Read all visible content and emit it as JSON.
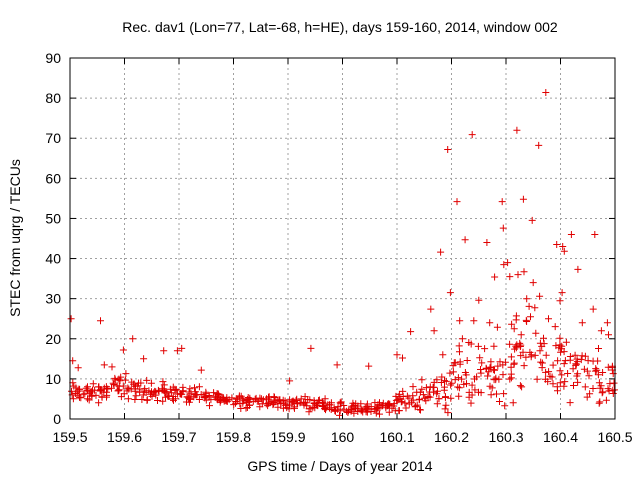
{
  "chart_data": {
    "type": "scatter",
    "title": "Rec. dav1 (Lon=77, Lat=-68, h=HE), days 159-160, 2014, window 002",
    "xlabel": "GPS time / Days of year 2014",
    "ylabel": "STEC from uqrg / TECUs",
    "xlim": [
      159.5,
      160.5
    ],
    "ylim": [
      0,
      90
    ],
    "xticks": [
      159.5,
      159.6,
      159.7,
      159.8,
      159.9,
      160.0,
      160.1,
      160.2,
      160.3,
      160.4,
      160.5
    ],
    "xtick_labels": [
      "159.5",
      "159.6",
      "159.7",
      "159.8",
      "159.9",
      "160",
      "160.1",
      "160.2",
      "160.3",
      "160.4",
      "160.5"
    ],
    "yticks": [
      0,
      10,
      20,
      30,
      40,
      50,
      60,
      70,
      80,
      90
    ],
    "ytick_labels": [
      "0",
      "10",
      "20",
      "30",
      "40",
      "50",
      "60",
      "70",
      "80",
      "90"
    ],
    "grid": true,
    "marker": "+",
    "color": "#e00000",
    "series": [
      {
        "name": "STEC",
        "points": [
          [
            159.502,
            25.0
          ],
          [
            159.505,
            14.5
          ],
          [
            159.515,
            12.8
          ],
          [
            159.556,
            24.5
          ],
          [
            159.563,
            13.5
          ],
          [
            159.577,
            13.0
          ],
          [
            159.598,
            17.2
          ],
          [
            159.615,
            20.0
          ],
          [
            159.635,
            15.0
          ],
          [
            159.672,
            17.0
          ],
          [
            159.697,
            17.0
          ],
          [
            159.705,
            17.6
          ],
          [
            159.741,
            12.2
          ],
          [
            159.903,
            9.5
          ],
          [
            159.942,
            17.6
          ],
          [
            159.99,
            13.5
          ],
          [
            160.048,
            13.2
          ],
          [
            160.1,
            16.0
          ],
          [
            160.11,
            15.2
          ],
          [
            160.125,
            21.8
          ],
          [
            160.162,
            27.4
          ],
          [
            160.168,
            22.0
          ],
          [
            160.18,
            41.6
          ],
          [
            160.184,
            16.0
          ],
          [
            160.193,
            67.2
          ],
          [
            160.198,
            31.5
          ],
          [
            160.21,
            54.2
          ],
          [
            160.215,
            24.5
          ],
          [
            160.22,
            20.0
          ],
          [
            160.225,
            44.7
          ],
          [
            160.238,
            70.9
          ],
          [
            160.241,
            24.5
          ],
          [
            160.25,
            29.6
          ],
          [
            160.265,
            44.0
          ],
          [
            160.27,
            24.0
          ],
          [
            160.279,
            35.4
          ],
          [
            160.285,
            13.2
          ],
          [
            160.293,
            54.2
          ],
          [
            160.295,
            47.6
          ],
          [
            160.296,
            38.5
          ],
          [
            160.303,
            39.0
          ],
          [
            160.307,
            35.5
          ],
          [
            160.315,
            22.5
          ],
          [
            160.32,
            72.0
          ],
          [
            160.322,
            36.0
          ],
          [
            160.332,
            54.8
          ],
          [
            160.333,
            36.7
          ],
          [
            160.338,
            30.0
          ],
          [
            160.345,
            25.5
          ],
          [
            160.348,
            49.5
          ],
          [
            160.35,
            34.0
          ],
          [
            160.36,
            68.2
          ],
          [
            160.373,
            81.4
          ],
          [
            160.378,
            25.0
          ],
          [
            160.393,
            43.5
          ],
          [
            160.399,
            29.5
          ],
          [
            160.403,
            31.5
          ],
          [
            160.404,
            43.0
          ],
          [
            160.407,
            41.8
          ],
          [
            160.42,
            46.0
          ],
          [
            160.432,
            37.3
          ],
          [
            160.44,
            24.0
          ],
          [
            160.46,
            27.4
          ],
          [
            160.463,
            46.0
          ],
          [
            160.475,
            22.0
          ],
          [
            160.486,
            24.0
          ],
          [
            160.488,
            21.0
          ]
        ]
      }
    ],
    "band_points": [
      [
        159.5,
        6.8,
        1.7
      ],
      [
        159.525,
        6.3,
        1.6
      ],
      [
        159.55,
        6.4,
        1.5
      ],
      [
        159.575,
        7.0,
        1.7
      ],
      [
        159.6,
        8.6,
        2.4
      ],
      [
        159.625,
        7.4,
        1.8
      ],
      [
        159.65,
        6.9,
        1.7
      ],
      [
        159.675,
        7.0,
        1.8
      ],
      [
        159.7,
        6.0,
        1.5
      ],
      [
        159.725,
        5.9,
        1.4
      ],
      [
        159.75,
        5.6,
        1.3
      ],
      [
        159.775,
        5.1,
        1.2
      ],
      [
        159.8,
        4.9,
        1.2
      ],
      [
        159.825,
        4.6,
        1.2
      ],
      [
        159.85,
        4.3,
        1.2
      ],
      [
        159.875,
        4.1,
        1.1
      ],
      [
        159.9,
        4.0,
        1.1
      ],
      [
        159.925,
        3.8,
        1.1
      ],
      [
        159.95,
        3.8,
        1.1
      ],
      [
        159.975,
        3.6,
        1.1
      ],
      [
        160.0,
        3.2,
        1.5
      ],
      [
        160.025,
        2.4,
        1.0
      ],
      [
        160.05,
        2.6,
        1.0
      ],
      [
        160.075,
        2.9,
        1.0
      ],
      [
        160.1,
        4.4,
        1.5
      ],
      [
        160.125,
        5.0,
        2.0
      ],
      [
        160.15,
        6.0,
        2.5
      ],
      [
        160.175,
        7.0,
        3.5
      ],
      [
        160.2,
        9.0,
        5.0
      ],
      [
        160.225,
        10.0,
        5.5
      ],
      [
        160.25,
        11.0,
        6.0
      ],
      [
        160.275,
        12.0,
        6.5
      ],
      [
        160.3,
        14.0,
        7.0
      ],
      [
        160.325,
        16.0,
        7.5
      ],
      [
        160.35,
        17.0,
        8.0
      ],
      [
        160.375,
        16.0,
        7.5
      ],
      [
        160.4,
        13.0,
        6.5
      ],
      [
        160.425,
        11.0,
        5.5
      ],
      [
        160.45,
        10.0,
        5.0
      ],
      [
        160.475,
        9.5,
        5.0
      ],
      [
        160.5,
        9.0,
        4.5
      ]
    ],
    "band_count_per_node": 16
  }
}
